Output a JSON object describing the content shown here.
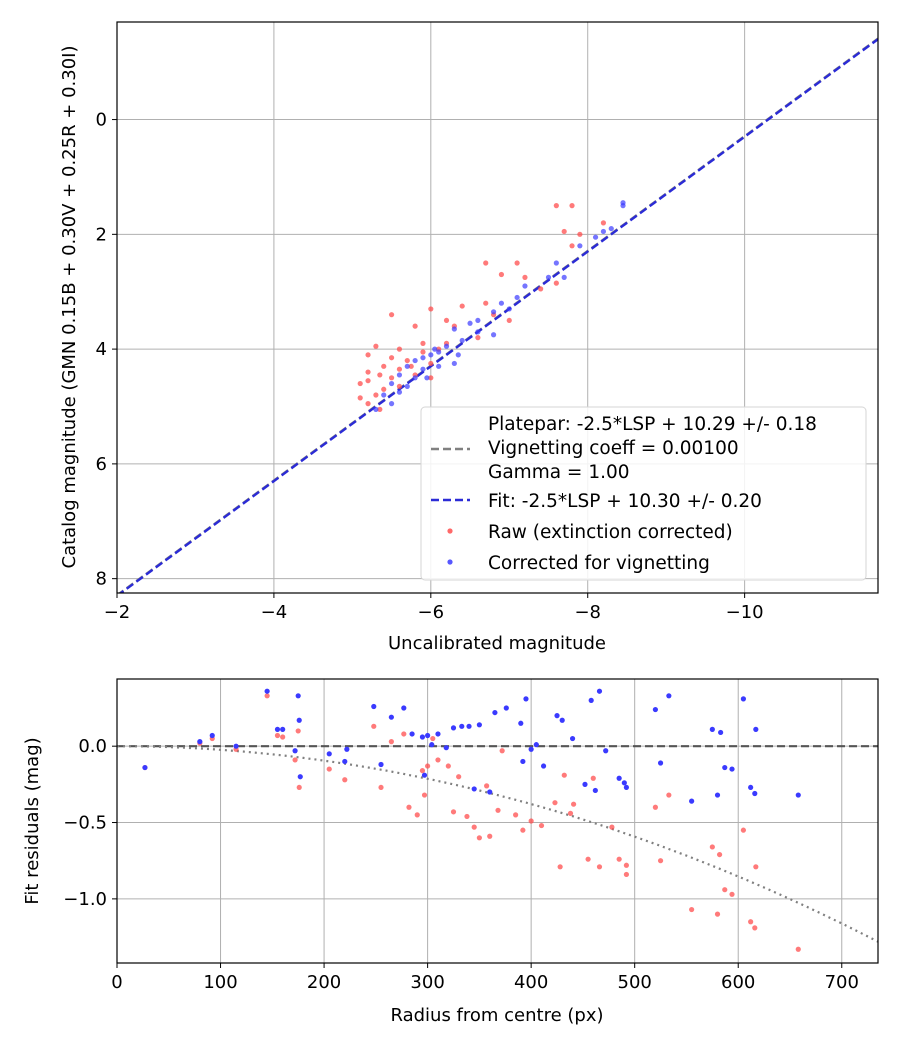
{
  "chart_data": [
    {
      "type": "scatter",
      "xlabel": "Uncalibrated magnitude",
      "ylabel": "Catalog magnitude (GMN 0.15B + 0.30V + 0.25R + 0.30I)",
      "xlim": [
        -2,
        -11.7
      ],
      "ylim": [
        8.25,
        -1.7
      ],
      "x_ticks": [
        -2,
        -4,
        -6,
        -8,
        -10
      ],
      "x_tick_labels": [
        "−2",
        "−4",
        "−6",
        "−8",
        "−10"
      ],
      "y_ticks": [
        0,
        2,
        4,
        6,
        8
      ],
      "y_tick_labels": [
        "0",
        "2",
        "4",
        "6",
        "8"
      ],
      "grid": true,
      "legend_position": "bottom-right",
      "legend": [
        {
          "label": "Platepar: -2.5*LSP + 10.29 +/- 0.18",
          "style": "none"
        },
        {
          "label": "Vignetting coeff = 0.00100",
          "style": "dashed",
          "color": "#808080"
        },
        {
          "label": "Gamma = 1.00",
          "style": "none"
        },
        {
          "label": "Fit: -2.5*LSP + 10.30 +/- 0.20",
          "style": "dashed",
          "color": "#2b2bd6"
        },
        {
          "label": "Raw (extinction corrected)",
          "style": "marker",
          "color": "#ff4d4d"
        },
        {
          "label": "Corrected for vignetting",
          "style": "marker",
          "color": "#3a3aff"
        }
      ],
      "lines": [
        {
          "name": "Platepar",
          "color": "#808080",
          "style": "dashed",
          "intercept": 10.29,
          "slope": 1
        },
        {
          "name": "Fit",
          "color": "#2b2bd6",
          "style": "dashed",
          "intercept": 10.3,
          "slope": 1
        }
      ],
      "series": [
        {
          "name": "Raw (extinction corrected)",
          "color": "#ff4d4d",
          "points": [
            [
              -7.8,
              1.5
            ],
            [
              -7.6,
              1.5
            ],
            [
              -8.2,
              1.8
            ],
            [
              -7.9,
              2.0
            ],
            [
              -7.7,
              1.95
            ],
            [
              -7.8,
              2.2
            ],
            [
              -6.7,
              2.5
            ],
            [
              -7.1,
              2.5
            ],
            [
              -6.9,
              2.7
            ],
            [
              -7.2,
              2.75
            ],
            [
              -7.6,
              2.85
            ],
            [
              -7.4,
              2.95
            ],
            [
              -6.7,
              3.2
            ],
            [
              -6.4,
              3.25
            ],
            [
              -6.0,
              3.3
            ],
            [
              -5.5,
              3.4
            ],
            [
              -6.8,
              3.4
            ],
            [
              -7.0,
              3.5
            ],
            [
              -6.2,
              3.5
            ],
            [
              -5.8,
              3.6
            ],
            [
              -5.3,
              3.95
            ],
            [
              -5.6,
              4.0
            ],
            [
              -5.9,
              4.05
            ],
            [
              -5.2,
              4.1
            ],
            [
              -5.5,
              4.15
            ],
            [
              -5.7,
              4.2
            ],
            [
              -6.0,
              4.25
            ],
            [
              -5.4,
              4.3
            ],
            [
              -5.6,
              4.35
            ],
            [
              -5.2,
              4.4
            ],
            [
              -5.35,
              4.45
            ],
            [
              -5.8,
              4.45
            ],
            [
              -6.0,
              4.5
            ],
            [
              -5.5,
              4.5
            ],
            [
              -5.2,
              4.55
            ],
            [
              -5.1,
              4.6
            ],
            [
              -5.6,
              4.65
            ],
            [
              -5.4,
              4.7
            ],
            [
              -5.3,
              4.8
            ],
            [
              -5.1,
              4.85
            ],
            [
              -5.2,
              4.95
            ],
            [
              -5.35,
              5.05
            ],
            [
              -6.3,
              3.6
            ],
            [
              -6.6,
              3.8
            ],
            [
              -5.9,
              3.9
            ],
            [
              -6.1,
              4.0
            ],
            [
              -5.75,
              4.3
            ],
            [
              -6.2,
              3.9
            ]
          ]
        },
        {
          "name": "Corrected for vignetting",
          "color": "#3a3aff",
          "points": [
            [
              -8.45,
              1.5
            ],
            [
              -8.45,
              1.45
            ],
            [
              -8.3,
              1.9
            ],
            [
              -8.2,
              1.95
            ],
            [
              -8.1,
              2.05
            ],
            [
              -7.9,
              2.2
            ],
            [
              -7.6,
              2.5
            ],
            [
              -7.7,
              2.75
            ],
            [
              -7.5,
              2.75
            ],
            [
              -7.2,
              2.9
            ],
            [
              -7.1,
              3.1
            ],
            [
              -6.9,
              3.2
            ],
            [
              -7.0,
              3.3
            ],
            [
              -6.8,
              3.35
            ],
            [
              -6.6,
              3.5
            ],
            [
              -6.5,
              3.55
            ],
            [
              -6.3,
              3.65
            ],
            [
              -6.6,
              3.7
            ],
            [
              -6.8,
              3.75
            ],
            [
              -6.4,
              3.85
            ],
            [
              -6.2,
              3.95
            ],
            [
              -6.1,
              4.05
            ],
            [
              -6.0,
              4.1
            ],
            [
              -5.9,
              4.15
            ],
            [
              -5.8,
              4.2
            ],
            [
              -5.7,
              4.3
            ],
            [
              -5.9,
              4.35
            ],
            [
              -6.1,
              4.3
            ],
            [
              -6.3,
              4.25
            ],
            [
              -5.6,
              4.45
            ],
            [
              -5.8,
              4.5
            ],
            [
              -5.5,
              4.6
            ],
            [
              -5.7,
              4.65
            ],
            [
              -5.6,
              4.75
            ],
            [
              -5.4,
              4.8
            ],
            [
              -5.5,
              4.95
            ],
            [
              -5.3,
              5.05
            ],
            [
              -6.05,
              4.0
            ],
            [
              -6.35,
              4.1
            ],
            [
              -5.95,
              4.5
            ]
          ]
        }
      ]
    },
    {
      "type": "scatter",
      "xlabel": "Radius from centre (px)",
      "ylabel": "Fit residuals (mag)",
      "xlim": [
        0,
        735
      ],
      "ylim": [
        -1.42,
        0.44
      ],
      "x_ticks": [
        0,
        100,
        200,
        300,
        400,
        500,
        600,
        700
      ],
      "x_tick_labels": [
        "0",
        "100",
        "200",
        "300",
        "400",
        "500",
        "600",
        "700"
      ],
      "y_ticks": [
        0.0,
        -0.5,
        -1.0
      ],
      "y_tick_labels": [
        "0.0",
        "−0.5",
        "−1.0"
      ],
      "grid": true,
      "reference_line": {
        "y": 0,
        "color": "#555555",
        "style": "dashed"
      },
      "model_curve": {
        "color": "#808080",
        "style": "dotted",
        "coefficient": 0.00237,
        "power": 2
      },
      "series": [
        {
          "name": "Raw (extinction corrected)",
          "color": "#ff4d4d",
          "points": [
            [
              27,
              -0.14
            ],
            [
              80,
              0.02
            ],
            [
              92,
              0.05
            ],
            [
              115,
              -0.02
            ],
            [
              145,
              0.33
            ],
            [
              155,
              0.07
            ],
            [
              160,
              0.06
            ],
            [
              172,
              -0.09
            ],
            [
              175,
              0.1
            ],
            [
              176,
              -0.27
            ],
            [
              205,
              -0.15
            ],
            [
              220,
              -0.22
            ],
            [
              248,
              0.13
            ],
            [
              255,
              -0.27
            ],
            [
              265,
              0.03
            ],
            [
              277,
              0.08
            ],
            [
              282,
              -0.4
            ],
            [
              290,
              -0.45
            ],
            [
              295,
              -0.16
            ],
            [
              297,
              -0.32
            ],
            [
              300,
              -0.13
            ],
            [
              305,
              0.05
            ],
            [
              310,
              -0.09
            ],
            [
              320,
              -0.13
            ],
            [
              325,
              -0.43
            ],
            [
              330,
              -0.2
            ],
            [
              338,
              -0.46
            ],
            [
              345,
              -0.53
            ],
            [
              350,
              -0.6
            ],
            [
              357,
              -0.26
            ],
            [
              360,
              -0.59
            ],
            [
              368,
              -0.42
            ],
            [
              372,
              -0.03
            ],
            [
              385,
              -0.45
            ],
            [
              392,
              -0.55
            ],
            [
              400,
              -0.49
            ],
            [
              410,
              -0.52
            ],
            [
              423,
              -0.37
            ],
            [
              428,
              -0.79
            ],
            [
              432,
              -0.19
            ],
            [
              438,
              -0.44
            ],
            [
              441,
              -0.38
            ],
            [
              455,
              -0.74
            ],
            [
              460,
              -0.21
            ],
            [
              466,
              -0.79
            ],
            [
              478,
              -0.53
            ],
            [
              485,
              -0.74
            ],
            [
              492,
              -0.78
            ],
            [
              492,
              -0.84
            ],
            [
              520,
              -0.4
            ],
            [
              525,
              -0.75
            ],
            [
              533,
              -0.32
            ],
            [
              555,
              -1.07
            ],
            [
              575,
              -0.66
            ],
            [
              580,
              -1.1
            ],
            [
              582,
              -0.71
            ],
            [
              587,
              -0.94
            ],
            [
              594,
              -0.97
            ],
            [
              605,
              -0.55
            ],
            [
              612,
              -1.15
            ],
            [
              616,
              -1.19
            ],
            [
              617,
              -0.79
            ],
            [
              658,
              -1.33
            ]
          ]
        },
        {
          "name": "Corrected for vignetting",
          "color": "#3a3aff",
          "points": [
            [
              27,
              -0.14
            ],
            [
              80,
              0.03
            ],
            [
              92,
              0.07
            ],
            [
              115,
              0.0
            ],
            [
              145,
              0.36
            ],
            [
              155,
              0.11
            ],
            [
              160,
              0.11
            ],
            [
              172,
              -0.03
            ],
            [
              175,
              0.33
            ],
            [
              176,
              0.17
            ],
            [
              177,
              -0.2
            ],
            [
              205,
              -0.05
            ],
            [
              220,
              -0.1
            ],
            [
              222,
              -0.02
            ],
            [
              248,
              0.26
            ],
            [
              255,
              -0.12
            ],
            [
              265,
              0.19
            ],
            [
              277,
              0.25
            ],
            [
              285,
              0.08
            ],
            [
              295,
              0.06
            ],
            [
              297,
              -0.19
            ],
            [
              300,
              0.07
            ],
            [
              304,
              0.01
            ],
            [
              310,
              0.08
            ],
            [
              318,
              -0.01
            ],
            [
              325,
              0.12
            ],
            [
              333,
              0.13
            ],
            [
              340,
              0.13
            ],
            [
              345,
              -0.28
            ],
            [
              350,
              0.14
            ],
            [
              360,
              -0.3
            ],
            [
              365,
              0.22
            ],
            [
              376,
              0.25
            ],
            [
              390,
              0.15
            ],
            [
              392,
              -0.1
            ],
            [
              395,
              0.31
            ],
            [
              400,
              -0.02
            ],
            [
              405,
              0.01
            ],
            [
              412,
              -0.13
            ],
            [
              425,
              0.2
            ],
            [
              430,
              0.17
            ],
            [
              440,
              0.05
            ],
            [
              452,
              -0.25
            ],
            [
              458,
              0.3
            ],
            [
              462,
              -0.29
            ],
            [
              466,
              0.36
            ],
            [
              472,
              -0.03
            ],
            [
              485,
              -0.21
            ],
            [
              490,
              -0.24
            ],
            [
              492,
              -0.27
            ],
            [
              520,
              0.24
            ],
            [
              525,
              -0.11
            ],
            [
              533,
              0.33
            ],
            [
              555,
              -0.36
            ],
            [
              575,
              0.11
            ],
            [
              580,
              -0.32
            ],
            [
              583,
              0.09
            ],
            [
              587,
              -0.14
            ],
            [
              594,
              -0.15
            ],
            [
              605,
              0.31
            ],
            [
              612,
              -0.27
            ],
            [
              616,
              -0.31
            ],
            [
              617,
              0.11
            ],
            [
              658,
              -0.32
            ]
          ]
        }
      ]
    }
  ]
}
